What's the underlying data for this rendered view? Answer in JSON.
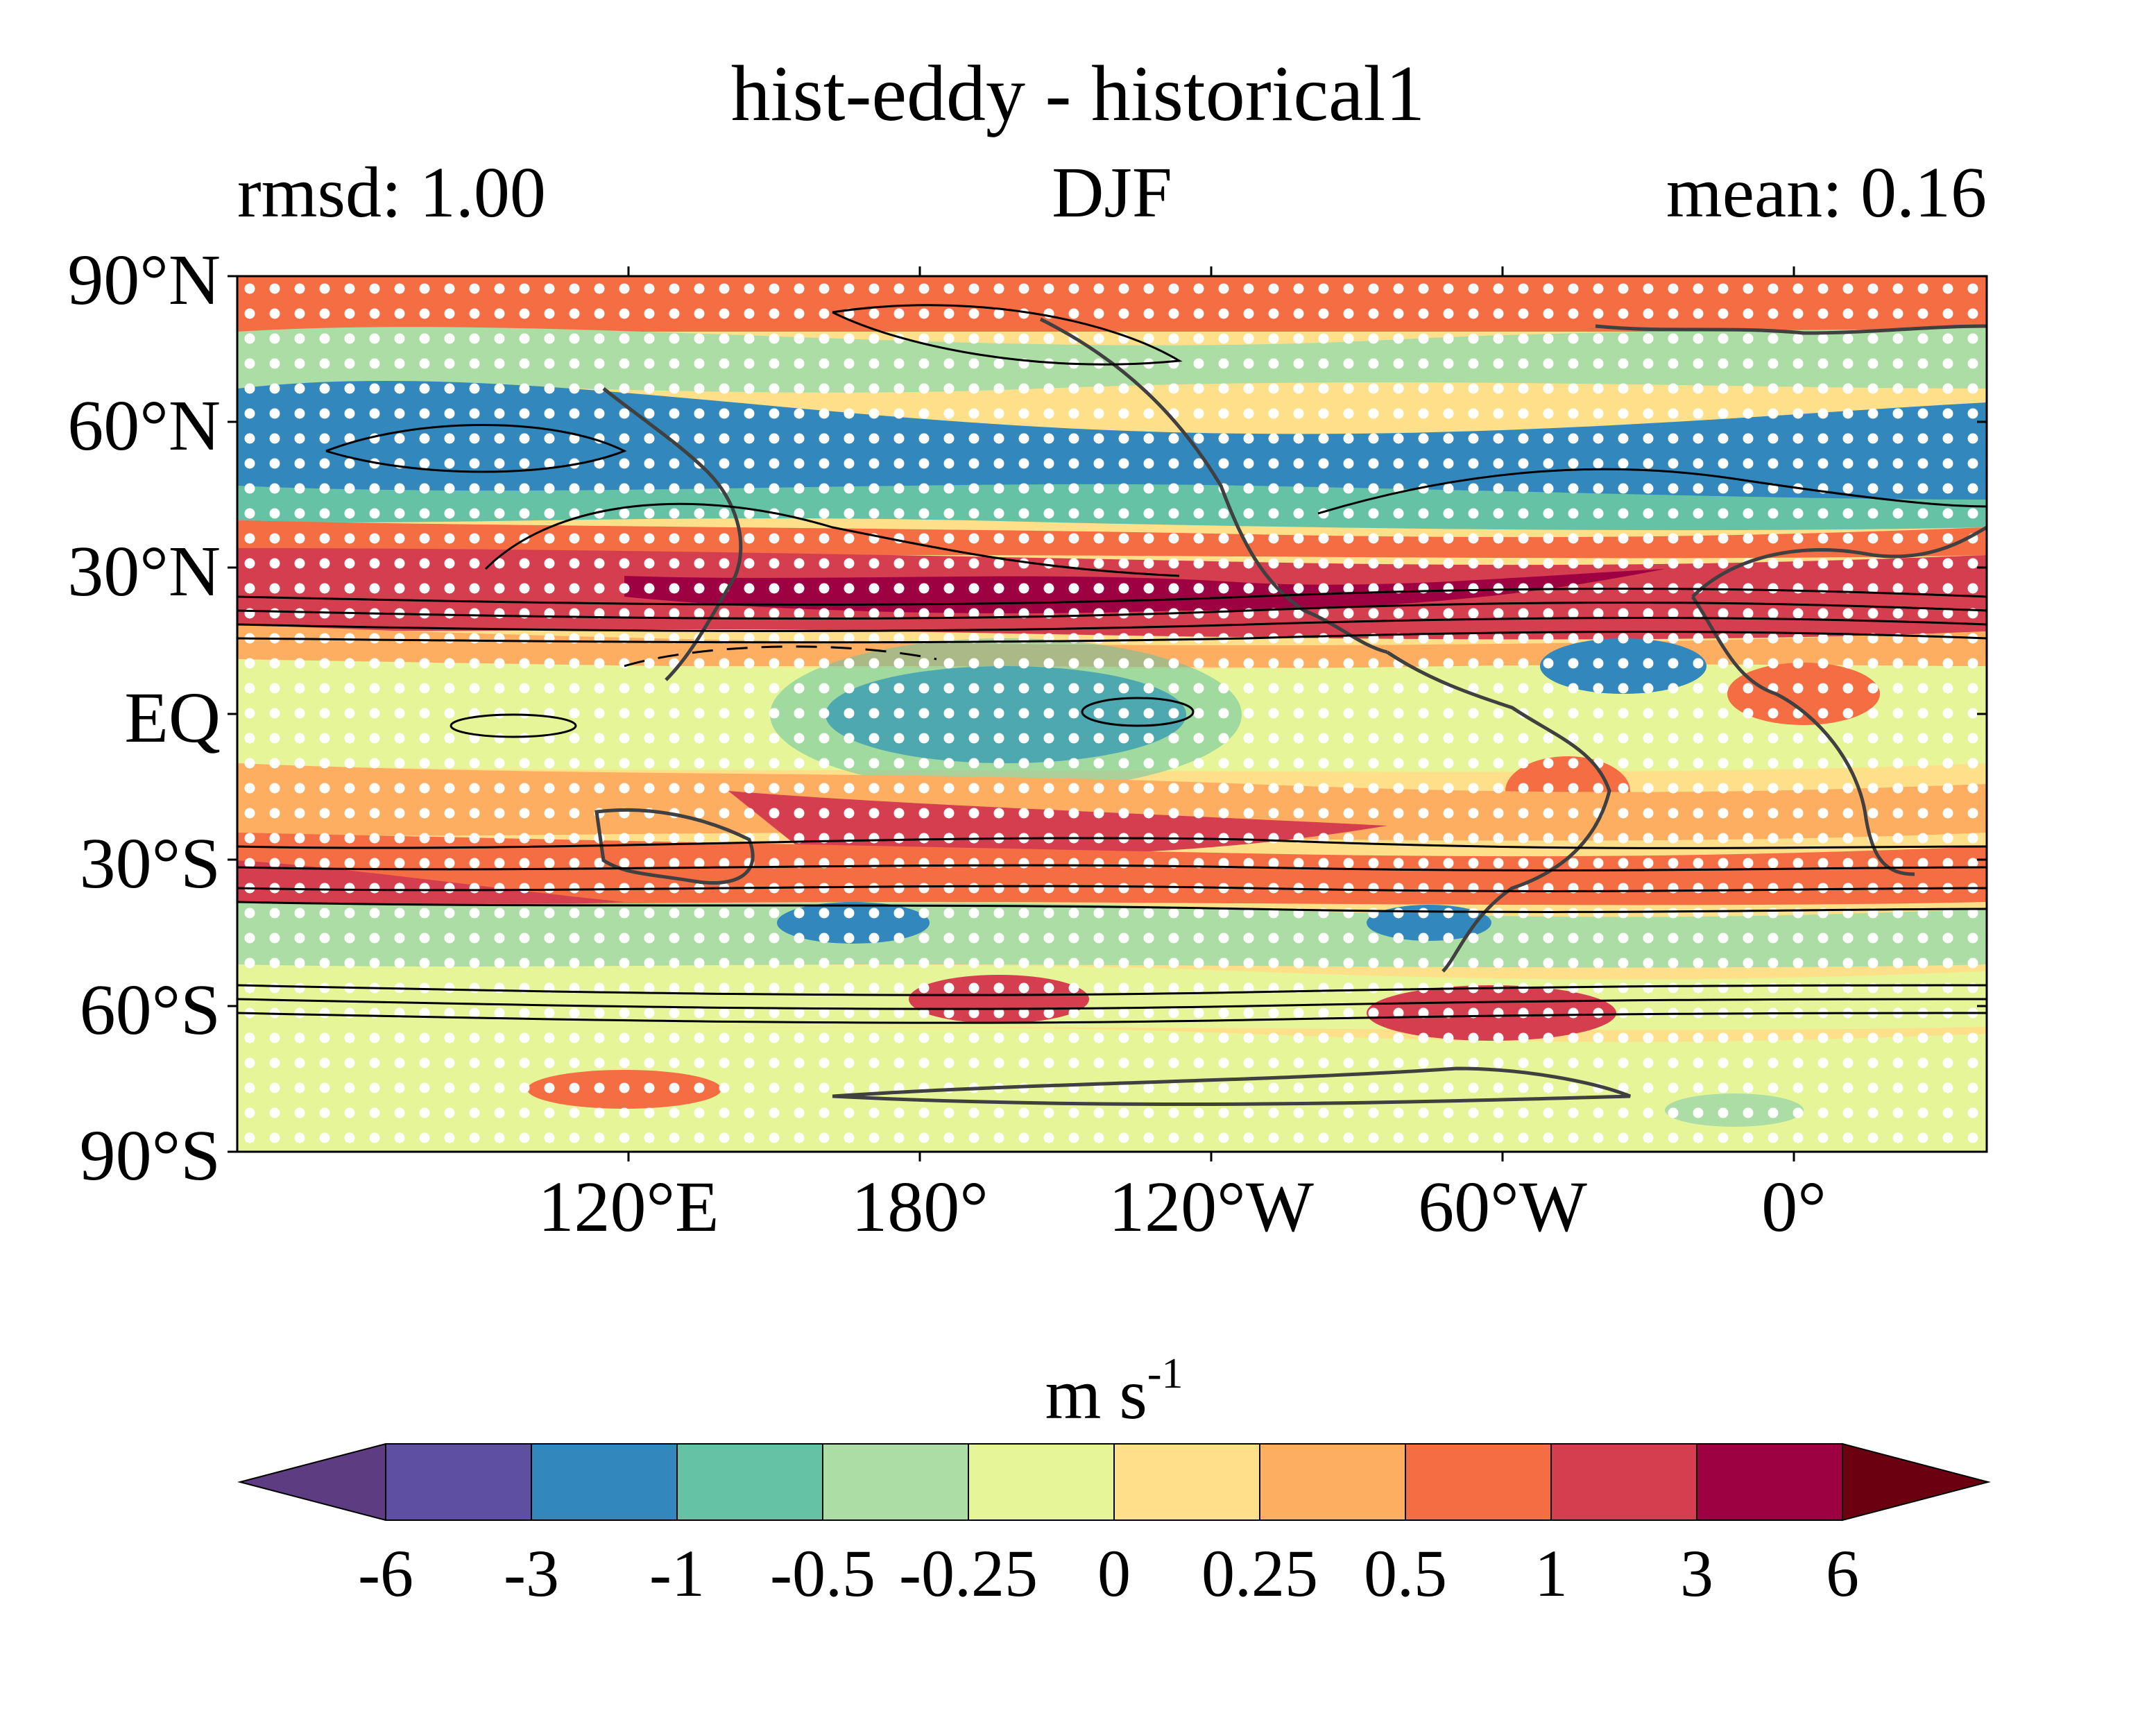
{
  "figure": {
    "title": "hist-eddy - historical1",
    "subtitle_left": "rmsd: 1.00",
    "subtitle_center": "DJF",
    "subtitle_right": "mean: 0.16"
  },
  "map": {
    "lat_labels": [
      "90°N",
      "60°N",
      "30°N",
      "EQ",
      "30°S",
      "60°S",
      "90°S"
    ],
    "lon_labels": [
      "120°E",
      "180°",
      "120°W",
      "60°W",
      "0°"
    ],
    "stippling": true,
    "contours": "black lines (solid positive, dashed negative)",
    "coastlines": true
  },
  "colorbar": {
    "unit_base": "m s",
    "unit_exp": "-1",
    "ticks": [
      "-6",
      "-3",
      "-1",
      "-0.5",
      "-0.25",
      "0",
      "0.25",
      "0.5",
      "1",
      "3",
      "6"
    ],
    "colors": [
      "#5e4fa2",
      "#3288bd",
      "#66c2a5",
      "#abdda4",
      "#e6f598",
      "#fee08b",
      "#fdae61",
      "#f46d43",
      "#d53e4f",
      "#9e0142"
    ],
    "extend_low": "#5e3c82",
    "extend_high": "#6a0010"
  }
}
